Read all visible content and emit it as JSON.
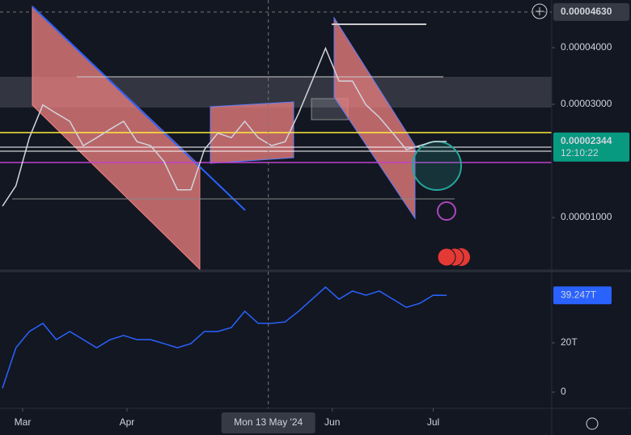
{
  "chart_data": [
    {
      "type": "line",
      "color": "#d1d4dc",
      "x": [
        -6,
        -2,
        2,
        6,
        10,
        14,
        18,
        22,
        26,
        30,
        34,
        38,
        42,
        46,
        50,
        54,
        58,
        62,
        66,
        70,
        74,
        78,
        82,
        86,
        90,
        94,
        98,
        102,
        106,
        110,
        114,
        118,
        122,
        126
      ],
      "values": [
        1.2e-05,
        1.56e-05,
        2.41e-05,
        2.99e-05,
        2.84e-05,
        2.7e-05,
        2.27e-05,
        2.41e-05,
        2.56e-05,
        2.7e-05,
        2.34e-05,
        2.27e-05,
        1.99e-05,
        1.49e-05,
        1.49e-05,
        2.2e-05,
        2.49e-05,
        2.41e-05,
        2.7e-05,
        2.41e-05,
        2.27e-05,
        2.34e-05,
        2.84e-05,
        3.41e-05,
        3.99e-05,
        3.41e-05,
        3.41e-05,
        2.99e-05,
        2.77e-05,
        2.49e-05,
        2.2e-05,
        2.27e-05,
        2.34e-05,
        2.344e-05
      ],
      "yticks": [
        {
          "value": 4e-05,
          "label": "0.00004000"
        },
        {
          "value": 3e-05,
          "label": "0.00003000"
        },
        {
          "value": 1e-05,
          "label": "0.00001000"
        }
      ],
      "crosshair_price": {
        "value": 4.63e-05,
        "label": "0.00004630"
      },
      "current_price": {
        "value": 2.344e-05,
        "label": "0.00002344"
      },
      "countdown": "12:10:22",
      "xticks": [
        {
          "value": 0,
          "label": "Mar"
        },
        {
          "value": 31,
          "label": "Apr"
        },
        {
          "value": 92,
          "label": "Jun"
        },
        {
          "value": 122,
          "label": "Jul"
        }
      ],
      "crosshair_date": {
        "value": 73,
        "label": "Mon 13 May '24"
      }
    },
    {
      "type": "line",
      "color": "#2962ff",
      "x": [
        -6,
        -2,
        2,
        6,
        10,
        14,
        18,
        22,
        26,
        30,
        34,
        38,
        42,
        46,
        50,
        54,
        58,
        62,
        66,
        70,
        74,
        78,
        82,
        86,
        90,
        94,
        98,
        102,
        106,
        110,
        114,
        118,
        122,
        126
      ],
      "values": [
        1.6,
        18,
        24.6,
        27.9,
        21.3,
        24.6,
        21.3,
        18,
        21.3,
        23,
        21.3,
        21.3,
        19.7,
        18,
        19.7,
        24.6,
        24.6,
        26.2,
        32.8,
        27.9,
        27.9,
        28.5,
        32.8,
        37.7,
        42.6,
        37.7,
        41,
        39.3,
        41,
        37.7,
        34.4,
        36,
        39.3,
        39.247
      ],
      "yticks": [
        {
          "value": 20,
          "label": "20T"
        },
        0
      ],
      "current_value": {
        "value": 39.247,
        "label": "39.247T"
      }
    }
  ]
}
